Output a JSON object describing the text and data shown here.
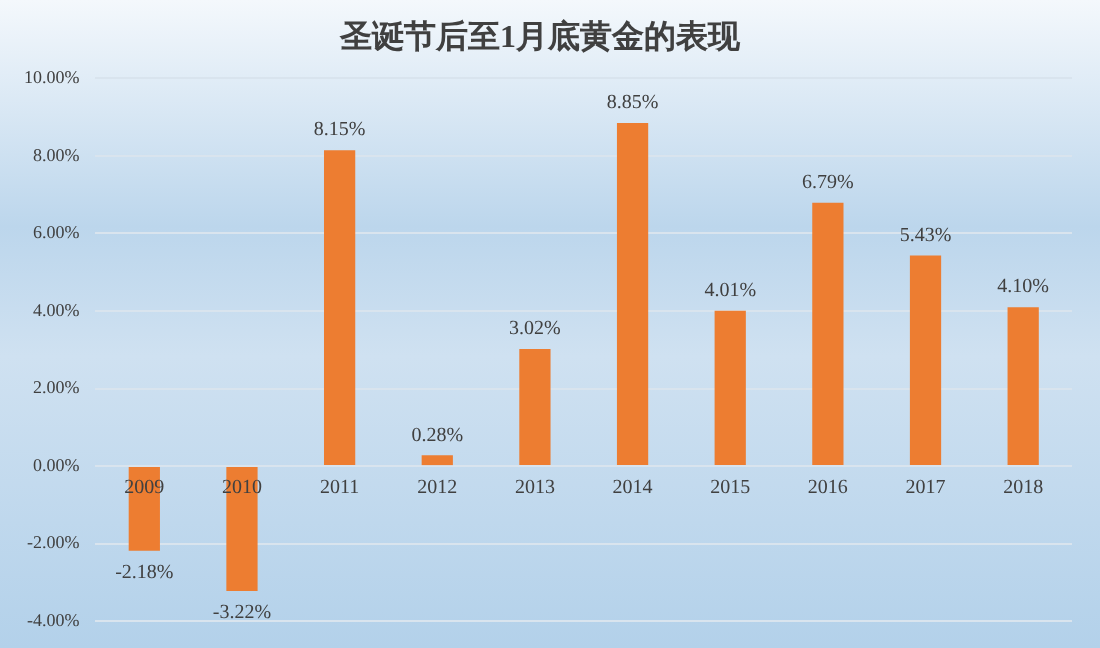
{
  "chart_data": {
    "type": "bar",
    "title": "圣诞节后至1月底黄金的表现",
    "categories": [
      "2009",
      "2010",
      "2011",
      "2012",
      "2013",
      "2014",
      "2015",
      "2016",
      "2017",
      "2018"
    ],
    "values": [
      -2.18,
      -3.22,
      8.15,
      0.28,
      3.02,
      8.85,
      4.01,
      6.79,
      5.43,
      4.1
    ],
    "value_labels": [
      "-2.18%",
      "-3.22%",
      "8.15%",
      "0.28%",
      "3.02%",
      "8.85%",
      "4.01%",
      "6.79%",
      "5.43%",
      "4.10%"
    ],
    "color": "#ed7d31",
    "ylim": [
      -4,
      10
    ],
    "yticks": [
      {
        "value": -4,
        "label": "-4.00%"
      },
      {
        "value": -2,
        "label": "-2.00%"
      },
      {
        "value": 0,
        "label": "0.00%"
      },
      {
        "value": 2,
        "label": "2.00%"
      },
      {
        "value": 4,
        "label": "4.00%"
      },
      {
        "value": 6,
        "label": "6.00%"
      },
      {
        "value": 8,
        "label": "8.00%"
      },
      {
        "value": 10,
        "label": "10.00%"
      }
    ],
    "grid": "y",
    "legend": false
  }
}
